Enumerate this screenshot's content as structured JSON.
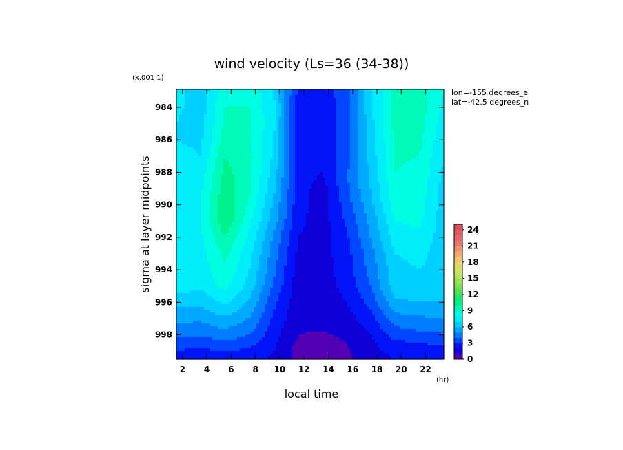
{
  "chart_data": {
    "type": "heatmap",
    "title": "wind velocity (Ls=36 (34-38))",
    "xlabel": "local time",
    "ylabel": "sigma at layer midpoints",
    "x_unit": "(hr)",
    "y_scale_note": "(x.001 1)",
    "annotations": [
      "lon=-155 degrees_e",
      "lat=-42.5 degrees_n"
    ],
    "xlim": [
      1.5,
      23.5
    ],
    "ylim": [
      999.5,
      982.9
    ],
    "x_ticks": [
      2,
      4,
      6,
      8,
      10,
      12,
      14,
      16,
      18,
      20,
      22
    ],
    "y_ticks": [
      984,
      986,
      988,
      990,
      992,
      994,
      996,
      998
    ],
    "x_tick_labels": [
      "2",
      "4",
      "6",
      "8",
      "10",
      "12",
      "14",
      "16",
      "18",
      "20",
      "22"
    ],
    "y_tick_labels": [
      "984",
      "986",
      "988",
      "990",
      "992",
      "994",
      "996",
      "998"
    ],
    "x": [
      1.5,
      3.5,
      5.5,
      7.5,
      9.5,
      11.5,
      13.5,
      15.5,
      17.5,
      19.5,
      21.5,
      23.5
    ],
    "y": [
      983,
      984,
      985,
      986,
      987,
      988,
      989,
      990,
      991,
      992,
      993,
      994,
      995,
      996,
      996.5,
      997,
      997.5,
      998,
      998.5,
      999,
      999.5
    ],
    "z": [
      [
        7.5,
        6.2,
        8.8,
        8.8,
        7.0,
        2.8,
        2.6,
        3.5,
        6.8,
        9.3,
        9.5,
        8.0
      ],
      [
        7.2,
        6.5,
        9.0,
        9.0,
        7.2,
        2.5,
        2.3,
        3.5,
        6.8,
        9.4,
        9.5,
        7.8
      ],
      [
        7.0,
        6.5,
        9.3,
        9.2,
        7.2,
        2.4,
        2.2,
        3.5,
        6.7,
        9.3,
        9.4,
        7.5
      ],
      [
        7.0,
        6.8,
        9.5,
        9.2,
        7.0,
        2.5,
        2.3,
        3.6,
        6.5,
        9.2,
        9.2,
        7.2
      ],
      [
        7.3,
        7.0,
        10.0,
        9.3,
        6.8,
        2.6,
        2.2,
        3.7,
        6.4,
        9.1,
        9.0,
        7.0
      ],
      [
        7.5,
        7.5,
        10.3,
        9.3,
        6.5,
        2.6,
        2.0,
        3.8,
        6.2,
        9.0,
        8.8,
        6.8
      ],
      [
        7.6,
        7.8,
        10.6,
        9.2,
        6.2,
        2.5,
        1.5,
        3.8,
        6.0,
        8.8,
        8.6,
        6.6
      ],
      [
        7.8,
        8.0,
        10.8,
        8.8,
        5.8,
        2.4,
        1.4,
        3.5,
        5.7,
        8.5,
        8.4,
        6.5
      ],
      [
        7.9,
        8.0,
        10.9,
        8.3,
        5.5,
        2.3,
        1.5,
        3.2,
        5.3,
        8.0,
        8.2,
        6.4
      ],
      [
        8.0,
        7.8,
        10.0,
        7.8,
        4.8,
        2.0,
        1.5,
        2.8,
        5.0,
        7.5,
        7.8,
        6.4
      ],
      [
        7.8,
        7.6,
        9.3,
        7.3,
        4.5,
        1.8,
        1.6,
        2.6,
        4.6,
        7.0,
        7.3,
        6.4
      ],
      [
        7.6,
        7.5,
        8.8,
        7.0,
        4.2,
        1.6,
        1.6,
        2.5,
        4.4,
        6.7,
        7.0,
        6.5
      ],
      [
        7.5,
        7.3,
        8.3,
        6.6,
        3.8,
        1.5,
        1.5,
        2.3,
        4.0,
        6.5,
        6.8,
        6.5
      ],
      [
        6.4,
        6.2,
        7.2,
        5.8,
        3.2,
        1.4,
        1.4,
        2.0,
        3.4,
        5.8,
        6.0,
        6.0
      ],
      [
        5.8,
        5.8,
        6.6,
        5.4,
        3.0,
        1.3,
        1.3,
        1.8,
        3.0,
        5.2,
        5.4,
        5.6
      ],
      [
        5.2,
        5.2,
        5.8,
        4.9,
        2.8,
        1.2,
        1.2,
        1.6,
        2.6,
        4.6,
        4.8,
        5.0
      ],
      [
        4.8,
        4.7,
        5.2,
        4.5,
        2.6,
        1.1,
        1.1,
        1.4,
        2.3,
        4.0,
        4.3,
        4.5
      ],
      [
        4.3,
        4.1,
        4.6,
        4.0,
        2.4,
        1.0,
        0.9,
        1.2,
        2.0,
        3.4,
        3.7,
        3.9
      ],
      [
        3.6,
        3.5,
        3.8,
        3.4,
        2.2,
        0.8,
        0.7,
        1.0,
        1.8,
        2.8,
        3.0,
        3.2
      ],
      [
        2.9,
        2.8,
        3.0,
        2.8,
        2.0,
        0.7,
        0.6,
        0.9,
        1.6,
        2.4,
        2.5,
        2.6
      ],
      [
        2.4,
        2.3,
        2.4,
        2.3,
        1.8,
        0.7,
        0.6,
        0.8,
        1.5,
        2.0,
        2.1,
        2.2
      ]
    ],
    "colorbar": {
      "min": 0,
      "max": 25,
      "step": 1,
      "tick_values": [
        0,
        3,
        6,
        9,
        12,
        15,
        18,
        21,
        24
      ],
      "tick_labels": [
        "0",
        "3",
        "6",
        "9",
        "12",
        "15",
        "18",
        "21",
        "24"
      ]
    },
    "grid": false,
    "legend": "right"
  }
}
